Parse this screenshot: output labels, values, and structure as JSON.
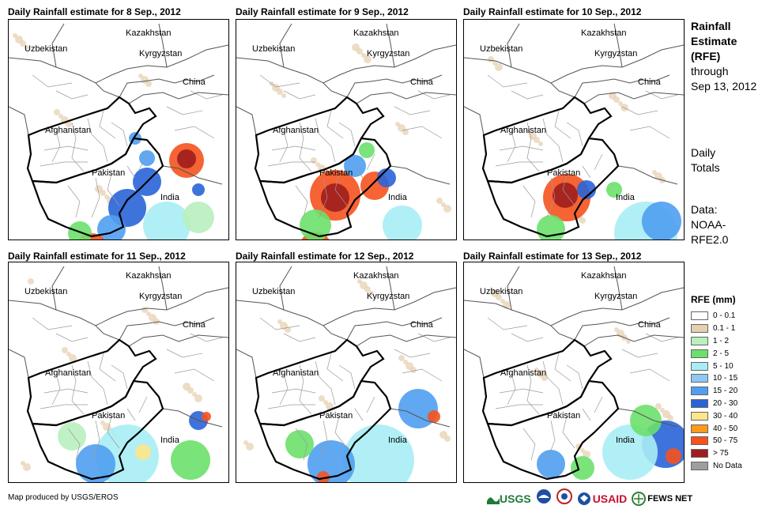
{
  "panels": [
    {
      "title": "Daily Rainfall estimate for 8 Sep., 2012",
      "rain": [
        {
          "x": 225,
          "y": 178,
          "r": 22,
          "c": "#f5521e"
        },
        {
          "x": 225,
          "y": 176,
          "r": 12,
          "c": "#a01d1d"
        },
        {
          "x": 175,
          "y": 205,
          "r": 18,
          "c": "#2a64d8"
        },
        {
          "x": 150,
          "y": 238,
          "r": 24,
          "c": "#2a64d8"
        },
        {
          "x": 130,
          "y": 265,
          "r": 18,
          "c": "#4f9ff0"
        },
        {
          "x": 105,
          "y": 290,
          "r": 20,
          "c": "#f5521e"
        },
        {
          "x": 175,
          "y": 175,
          "r": 10,
          "c": "#4f9ff0"
        },
        {
          "x": 240,
          "y": 215,
          "r": 8,
          "c": "#2a64d8"
        },
        {
          "x": 200,
          "y": 260,
          "r": 30,
          "c": "#a8edf5"
        },
        {
          "x": 160,
          "y": 150,
          "r": 8,
          "c": "#4f9ff0"
        },
        {
          "x": 90,
          "y": 270,
          "r": 15,
          "c": "#6be06b"
        },
        {
          "x": 240,
          "y": 250,
          "r": 20,
          "c": "#b8f0bf"
        }
      ]
    },
    {
      "title": "Daily Rainfall estimate for 9 Sep., 2012",
      "rain": [
        {
          "x": 125,
          "y": 222,
          "r": 32,
          "c": "#f5521e"
        },
        {
          "x": 125,
          "y": 225,
          "r": 18,
          "c": "#a01d1d"
        },
        {
          "x": 175,
          "y": 210,
          "r": 18,
          "c": "#f5521e"
        },
        {
          "x": 190,
          "y": 200,
          "r": 12,
          "c": "#2a64d8"
        },
        {
          "x": 150,
          "y": 185,
          "r": 14,
          "c": "#4f9ff0"
        },
        {
          "x": 100,
          "y": 288,
          "r": 20,
          "c": "#f5521e"
        },
        {
          "x": 100,
          "y": 260,
          "r": 20,
          "c": "#6be06b"
        },
        {
          "x": 210,
          "y": 260,
          "r": 25,
          "c": "#a8edf5"
        },
        {
          "x": 165,
          "y": 165,
          "r": 10,
          "c": "#6be06b"
        }
      ]
    },
    {
      "title": "Daily Rainfall estimate for 10 Sep., 2012",
      "rain": [
        {
          "x": 130,
          "y": 225,
          "r": 30,
          "c": "#f5521e"
        },
        {
          "x": 128,
          "y": 222,
          "r": 16,
          "c": "#a01d1d"
        },
        {
          "x": 155,
          "y": 215,
          "r": 12,
          "c": "#2a64d8"
        },
        {
          "x": 230,
          "y": 270,
          "r": 40,
          "c": "#a8edf5"
        },
        {
          "x": 250,
          "y": 255,
          "r": 25,
          "c": "#4f9ff0"
        },
        {
          "x": 110,
          "y": 265,
          "r": 18,
          "c": "#6be06b"
        },
        {
          "x": 190,
          "y": 215,
          "r": 10,
          "c": "#6be06b"
        }
      ]
    },
    {
      "title": "Daily Rainfall estimate for 11 Sep., 2012",
      "rain": [
        {
          "x": 240,
          "y": 200,
          "r": 12,
          "c": "#2a64d8"
        },
        {
          "x": 250,
          "y": 195,
          "r": 6,
          "c": "#f5521e"
        },
        {
          "x": 150,
          "y": 245,
          "r": 40,
          "c": "#a8edf5"
        },
        {
          "x": 170,
          "y": 240,
          "r": 10,
          "c": "#fde68a"
        },
        {
          "x": 110,
          "y": 255,
          "r": 25,
          "c": "#4f9ff0"
        },
        {
          "x": 230,
          "y": 250,
          "r": 25,
          "c": "#6be06b"
        },
        {
          "x": 80,
          "y": 220,
          "r": 18,
          "c": "#b8f0bf"
        }
      ]
    },
    {
      "title": "Daily Rainfall estimate for 12 Sep., 2012",
      "rain": [
        {
          "x": 230,
          "y": 185,
          "r": 25,
          "c": "#4f9ff0"
        },
        {
          "x": 250,
          "y": 195,
          "r": 8,
          "c": "#f5521e"
        },
        {
          "x": 180,
          "y": 250,
          "r": 45,
          "c": "#a8edf5"
        },
        {
          "x": 120,
          "y": 255,
          "r": 30,
          "c": "#4f9ff0"
        },
        {
          "x": 110,
          "y": 272,
          "r": 8,
          "c": "#f5521e"
        },
        {
          "x": 80,
          "y": 230,
          "r": 18,
          "c": "#6be06b"
        }
      ]
    },
    {
      "title": "Daily Rainfall estimate for 13 Sep., 2012",
      "rain": [
        {
          "x": 255,
          "y": 230,
          "r": 30,
          "c": "#2a64d8"
        },
        {
          "x": 265,
          "y": 245,
          "r": 10,
          "c": "#f5521e"
        },
        {
          "x": 210,
          "y": 240,
          "r": 35,
          "c": "#a8edf5"
        },
        {
          "x": 110,
          "y": 255,
          "r": 18,
          "c": "#4f9ff0"
        },
        {
          "x": 230,
          "y": 200,
          "r": 20,
          "c": "#6be06b"
        },
        {
          "x": 150,
          "y": 260,
          "r": 15,
          "c": "#6be06b"
        }
      ]
    }
  ],
  "map_labels": {
    "kazakhstan": "Kazakhstan",
    "uzbekistan": "Uzbekistan",
    "kyrgyzstan": "Kyrgyzstan",
    "china": "China",
    "afghanistan": "Afghanistan",
    "pakistan": "Pakistan",
    "india": "India"
  },
  "sidebar": {
    "title_bold": [
      "Rainfall",
      "Estimate",
      "(RFE)"
    ],
    "title_normal": [
      "through",
      "Sep 13, 2012"
    ],
    "daily": [
      "Daily",
      "Totals"
    ],
    "data_source": [
      "Data:",
      "NOAA-",
      "RFE2.0"
    ]
  },
  "legend": {
    "title": "RFE (mm)",
    "items": [
      {
        "label": "0 - 0.1",
        "color": "#ffffff"
      },
      {
        "label": "0.1 - 1",
        "color": "#e5cfae"
      },
      {
        "label": "1 - 2",
        "color": "#b8f0bf"
      },
      {
        "label": "2 - 5",
        "color": "#6be06b"
      },
      {
        "label": "5 - 10",
        "color": "#a8edf5"
      },
      {
        "label": "10 - 15",
        "color": "#8ec8f5"
      },
      {
        "label": "15 - 20",
        "color": "#4f9ff0"
      },
      {
        "label": "20 - 30",
        "color": "#2a64d8"
      },
      {
        "label": "30 - 40",
        "color": "#fde68a"
      },
      {
        "label": "40 - 50",
        "color": "#fb9b1a"
      },
      {
        "label": "50 - 75",
        "color": "#f5521e"
      },
      {
        "label": "> 75",
        "color": "#a01d1d"
      },
      {
        "label": "No Data",
        "color": "#9e9e9e"
      }
    ]
  },
  "footer": {
    "credit": "Map produced by USGS/EROS",
    "logos": [
      "USGS",
      "USAID",
      "FEWS NET"
    ]
  }
}
